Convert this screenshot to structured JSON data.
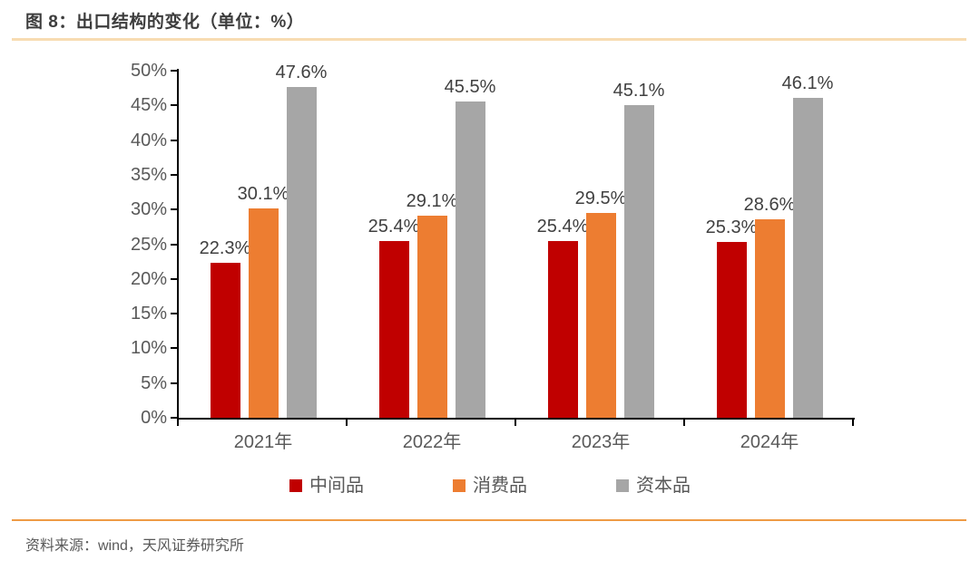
{
  "figure": {
    "title": "图 8：出口结构的变化（单位：%）",
    "source": "资料来源：wind，天风证券研究所"
  },
  "colors": {
    "title_rule": "#F8DCB2",
    "source_rule": "#EE9B45",
    "axis": "#000000",
    "axis_text": "#595959",
    "value_label_text": "#404040"
  },
  "chart_data": {
    "type": "bar",
    "title": "出口结构的变化",
    "unit": "%",
    "categories": [
      "2021年",
      "2022年",
      "2023年",
      "2024年"
    ],
    "series": [
      {
        "key": "intermediate-goods",
        "name": "中间品",
        "color": "#C00000",
        "values": [
          22.3,
          25.4,
          25.4,
          25.3
        ]
      },
      {
        "key": "consumer-goods",
        "name": "消费品",
        "color": "#ED7D31",
        "values": [
          30.1,
          29.1,
          29.5,
          28.6
        ]
      },
      {
        "key": "capital-goods",
        "name": "资本品",
        "color": "#A6A6A6",
        "values": [
          47.6,
          45.5,
          45.1,
          46.1
        ]
      }
    ],
    "ylim": [
      0,
      50
    ],
    "ytick_step": 5,
    "ytick_labels": [
      "0%",
      "5%",
      "10%",
      "15%",
      "20%",
      "25%",
      "30%",
      "35%",
      "40%",
      "45%",
      "50%"
    ],
    "data_labels": "outside-end, one decimal + %",
    "legend_position": "bottom",
    "grid": false
  }
}
